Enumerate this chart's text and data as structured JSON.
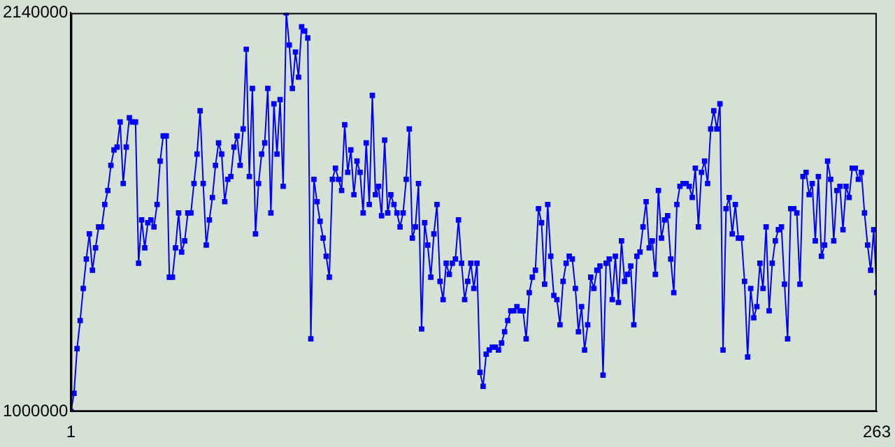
{
  "chart_data": {
    "type": "line",
    "marker": "square",
    "xlim": [
      1,
      263
    ],
    "xticks": [
      1,
      263
    ],
    "ylim": [
      1000000,
      2140000
    ],
    "yticks": [
      1000000,
      2140000
    ],
    "x": [
      1,
      2,
      3,
      4,
      5,
      6,
      7,
      8,
      9,
      10,
      11,
      12,
      13,
      14,
      15,
      16,
      17,
      18,
      19,
      20,
      21,
      22,
      23,
      24,
      25,
      26,
      27,
      28,
      29,
      30,
      31,
      32,
      33,
      34,
      35,
      36,
      37,
      38,
      39,
      40,
      41,
      42,
      43,
      44,
      45,
      46,
      47,
      48,
      49,
      50,
      51,
      52,
      53,
      54,
      55,
      56,
      57,
      58,
      59,
      60,
      61,
      62,
      63,
      64,
      65,
      66,
      67,
      68,
      69,
      70,
      71,
      72,
      73,
      74,
      75,
      76,
      77,
      78,
      79,
      80,
      81,
      82,
      83,
      84,
      85,
      86,
      87,
      88,
      89,
      90,
      91,
      92,
      93,
      94,
      95,
      96,
      97,
      98,
      99,
      100,
      101,
      102,
      103,
      104,
      105,
      106,
      107,
      108,
      109,
      110,
      111,
      112,
      113,
      114,
      115,
      116,
      117,
      118,
      119,
      120,
      121,
      122,
      123,
      124,
      125,
      126,
      127,
      128,
      129,
      130,
      131,
      132,
      133,
      134,
      135,
      136,
      137,
      138,
      139,
      140,
      141,
      142,
      143,
      144,
      145,
      146,
      147,
      148,
      149,
      150,
      151,
      152,
      153,
      154,
      155,
      156,
      157,
      158,
      159,
      160,
      161,
      162,
      163,
      164,
      165,
      166,
      167,
      168,
      169,
      170,
      171,
      172,
      173,
      174,
      175,
      176,
      177,
      178,
      179,
      180,
      181,
      182,
      183,
      184,
      185,
      186,
      187,
      188,
      189,
      190,
      191,
      192,
      193,
      194,
      195,
      196,
      197,
      198,
      199,
      200,
      201,
      202,
      203,
      204,
      205,
      206,
      207,
      208,
      209,
      210,
      211,
      212,
      213,
      214,
      215,
      216,
      217,
      218,
      219,
      220,
      221,
      222,
      223,
      224,
      225,
      226,
      227,
      228,
      229,
      230,
      231,
      232,
      233,
      234,
      235,
      236,
      237,
      238,
      239,
      240,
      241,
      242,
      243,
      244,
      245,
      246,
      247,
      248,
      249,
      250,
      251,
      252,
      253,
      254,
      255,
      256,
      257,
      258,
      259,
      260,
      261,
      262,
      263
    ],
    "series": [
      {
        "color": "#0000ff",
        "values": [
          1000000,
          1052000,
          1180000,
          1260000,
          1352000,
          1436000,
          1508000,
          1404000,
          1468000,
          1528000,
          1528000,
          1592000,
          1632000,
          1704000,
          1748000,
          1756000,
          1828000,
          1652000,
          1756000,
          1840000,
          1828000,
          1828000,
          1424000,
          1548000,
          1468000,
          1540000,
          1548000,
          1528000,
          1592000,
          1716000,
          1788000,
          1788000,
          1384000,
          1384000,
          1468000,
          1568000,
          1456000,
          1488000,
          1568000,
          1568000,
          1652000,
          1736000,
          1860000,
          1652000,
          1476000,
          1548000,
          1612000,
          1704000,
          1768000,
          1736000,
          1600000,
          1664000,
          1672000,
          1756000,
          1788000,
          1704000,
          1808000,
          2036000,
          1672000,
          1924000,
          1508000,
          1652000,
          1736000,
          1768000,
          1924000,
          1568000,
          1880000,
          1736000,
          1892000,
          1644000,
          2140000,
          2048000,
          1924000,
          2028000,
          1956000,
          2100000,
          2088000,
          2068000,
          1208000,
          1664000,
          1600000,
          1544000,
          1496000,
          1444000,
          1384000,
          1664000,
          1696000,
          1664000,
          1632000,
          1820000,
          1684000,
          1748000,
          1620000,
          1716000,
          1684000,
          1568000,
          1768000,
          1592000,
          1904000,
          1620000,
          1644000,
          1560000,
          1776000,
          1568000,
          1620000,
          1592000,
          1568000,
          1528000,
          1568000,
          1664000,
          1808000,
          1496000,
          1528000,
          1652000,
          1236000,
          1540000,
          1476000,
          1384000,
          1508000,
          1592000,
          1372000,
          1320000,
          1424000,
          1392000,
          1424000,
          1436000,
          1548000,
          1424000,
          1320000,
          1372000,
          1424000,
          1352000,
          1424000,
          1112000,
          1072000,
          1164000,
          1176000,
          1184000,
          1184000,
          1176000,
          1196000,
          1228000,
          1260000,
          1288000,
          1288000,
          1300000,
          1288000,
          1288000,
          1208000,
          1340000,
          1384000,
          1404000,
          1580000,
          1540000,
          1364000,
          1592000,
          1444000,
          1332000,
          1320000,
          1248000,
          1372000,
          1424000,
          1444000,
          1436000,
          1352000,
          1228000,
          1300000,
          1176000,
          1248000,
          1384000,
          1352000,
          1404000,
          1416000,
          1104000,
          1424000,
          1436000,
          1320000,
          1444000,
          1312000,
          1488000,
          1372000,
          1392000,
          1416000,
          1248000,
          1444000,
          1456000,
          1528000,
          1600000,
          1468000,
          1488000,
          1392000,
          1632000,
          1496000,
          1548000,
          1560000,
          1436000,
          1340000,
          1592000,
          1644000,
          1652000,
          1652000,
          1644000,
          1612000,
          1696000,
          1528000,
          1684000,
          1716000,
          1652000,
          1808000,
          1860000,
          1808000,
          1880000,
          1176000,
          1580000,
          1612000,
          1508000,
          1592000,
          1496000,
          1496000,
          1372000,
          1156000,
          1352000,
          1268000,
          1300000,
          1424000,
          1352000,
          1528000,
          1288000,
          1424000,
          1488000,
          1520000,
          1528000,
          1364000,
          1208000,
          1580000,
          1580000,
          1568000,
          1364000,
          1672000,
          1684000,
          1620000,
          1652000,
          1488000,
          1672000,
          1444000,
          1476000,
          1716000,
          1664000,
          1488000,
          1632000,
          1644000,
          1520000,
          1644000,
          1612000,
          1696000,
          1696000,
          1664000,
          1684000,
          1568000,
          1476000,
          1404000,
          1520000,
          1340000
        ]
      }
    ]
  }
}
